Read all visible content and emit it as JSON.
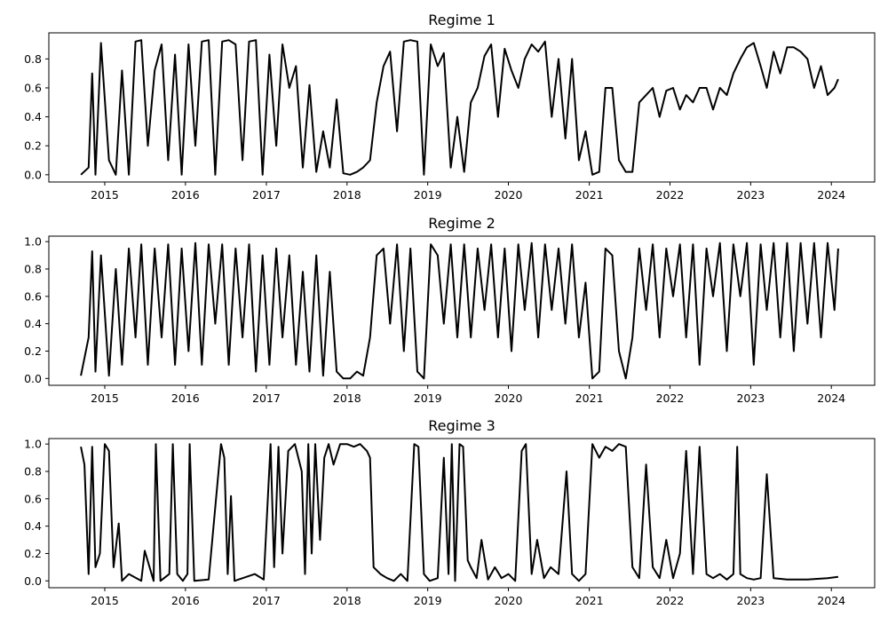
{
  "chart_data": [
    {
      "type": "line",
      "title": "Regime 1",
      "xlabel": "",
      "ylabel": "",
      "xlim": [
        "2014-04-23",
        "2024-07-15"
      ],
      "ylim": [
        -0.05,
        0.98
      ],
      "x_ticks": [
        "2015",
        "2016",
        "2017",
        "2018",
        "2019",
        "2020",
        "2021",
        "2022",
        "2023",
        "2024"
      ],
      "y_ticks": [
        0.0,
        0.2,
        0.4,
        0.6,
        0.8
      ],
      "y_tick_labels": [
        "0.0",
        "0.2",
        "0.4",
        "0.6",
        "0.8"
      ],
      "grid": false,
      "series": [
        {
          "color": "#000000",
          "x": [
            "2014-09-15",
            "2014-10-20",
            "2014-11-05",
            "2014-11-20",
            "2014-12-15",
            "2015-01-20",
            "2015-02-20",
            "2015-03-20",
            "2015-04-20",
            "2015-05-20",
            "2015-06-15",
            "2015-07-15",
            "2015-08-15",
            "2015-09-15",
            "2015-10-15",
            "2015-11-15",
            "2015-12-15",
            "2016-01-15",
            "2016-02-15",
            "2016-03-15",
            "2016-04-15",
            "2016-05-15",
            "2016-06-15",
            "2016-07-15",
            "2016-08-15",
            "2016-09-15",
            "2016-10-15",
            "2016-11-15",
            "2016-12-15",
            "2017-01-15",
            "2017-02-15",
            "2017-03-15",
            "2017-04-15",
            "2017-05-15",
            "2017-06-15",
            "2017-07-15",
            "2017-08-15",
            "2017-09-15",
            "2017-10-15",
            "2017-11-15",
            "2017-12-15",
            "2018-01-15",
            "2018-02-15",
            "2018-03-15",
            "2018-04-15",
            "2018-05-15",
            "2018-06-15",
            "2018-07-15",
            "2018-08-15",
            "2018-09-15",
            "2018-10-15",
            "2018-11-15",
            "2018-12-15",
            "2019-01-15",
            "2019-02-15",
            "2019-03-15",
            "2019-04-15",
            "2019-05-15",
            "2019-06-15",
            "2019-07-15",
            "2019-08-15",
            "2019-09-15",
            "2019-10-15",
            "2019-11-15",
            "2019-12-15",
            "2020-01-15",
            "2020-02-15",
            "2020-03-15",
            "2020-04-15",
            "2020-05-15",
            "2020-06-15",
            "2020-07-15",
            "2020-08-15",
            "2020-09-15",
            "2020-10-15",
            "2020-11-15",
            "2020-12-15",
            "2021-01-15",
            "2021-02-15",
            "2021-03-15",
            "2021-04-15",
            "2021-05-15",
            "2021-06-15",
            "2021-07-15",
            "2021-08-15",
            "2021-09-15",
            "2021-10-15",
            "2021-11-15",
            "2021-12-15",
            "2022-01-15",
            "2022-02-15",
            "2022-03-15",
            "2022-04-15",
            "2022-05-15",
            "2022-06-15",
            "2022-07-15",
            "2022-08-15",
            "2022-09-15",
            "2022-10-15",
            "2022-11-15",
            "2022-12-15",
            "2023-01-15",
            "2023-02-15",
            "2023-03-15",
            "2023-04-15",
            "2023-05-15",
            "2023-06-15",
            "2023-07-15",
            "2023-08-15",
            "2023-09-15",
            "2023-10-15",
            "2023-11-15",
            "2023-12-15",
            "2024-01-15",
            "2024-02-01"
          ],
          "y": [
            0.0,
            0.05,
            0.7,
            0.0,
            0.91,
            0.1,
            0.0,
            0.72,
            0.0,
            0.92,
            0.93,
            0.2,
            0.72,
            0.9,
            0.1,
            0.83,
            0.0,
            0.9,
            0.2,
            0.92,
            0.93,
            0.0,
            0.92,
            0.93,
            0.9,
            0.1,
            0.92,
            0.93,
            0.0,
            0.83,
            0.2,
            0.9,
            0.6,
            0.75,
            0.05,
            0.62,
            0.02,
            0.3,
            0.05,
            0.52,
            0.01,
            0.0,
            0.02,
            0.05,
            0.1,
            0.5,
            0.75,
            0.85,
            0.3,
            0.92,
            0.93,
            0.92,
            0.0,
            0.9,
            0.75,
            0.84,
            0.05,
            0.4,
            0.02,
            0.5,
            0.6,
            0.82,
            0.9,
            0.4,
            0.87,
            0.72,
            0.6,
            0.8,
            0.9,
            0.85,
            0.92,
            0.4,
            0.8,
            0.25,
            0.8,
            0.1,
            0.3,
            0.0,
            0.02,
            0.6,
            0.6,
            0.1,
            0.02,
            0.02,
            0.5,
            0.55,
            0.6,
            0.4,
            0.58,
            0.6,
            0.45,
            0.55,
            0.5,
            0.6,
            0.6,
            0.45,
            0.6,
            0.55,
            0.7,
            0.8,
            0.88,
            0.91,
            0.75,
            0.6,
            0.85,
            0.7,
            0.88,
            0.88,
            0.85,
            0.8,
            0.6,
            0.75,
            0.55,
            0.6,
            0.66
          ]
        }
      ]
    },
    {
      "type": "line",
      "title": "Regime 2",
      "xlabel": "",
      "ylabel": "",
      "xlim": [
        "2014-04-23",
        "2024-07-15"
      ],
      "ylim": [
        -0.05,
        1.04
      ],
      "x_ticks": [
        "2015",
        "2016",
        "2017",
        "2018",
        "2019",
        "2020",
        "2021",
        "2022",
        "2023",
        "2024"
      ],
      "y_ticks": [
        0.0,
        0.2,
        0.4,
        0.6,
        0.8,
        1.0
      ],
      "y_tick_labels": [
        "0.0",
        "0.2",
        "0.4",
        "0.6",
        "0.8",
        "1.0"
      ],
      "grid": false,
      "series": [
        {
          "color": "#000000",
          "x": [
            "2014-09-15",
            "2014-10-20",
            "2014-11-05",
            "2014-11-20",
            "2014-12-15",
            "2015-01-20",
            "2015-02-20",
            "2015-03-20",
            "2015-04-20",
            "2015-05-20",
            "2015-06-15",
            "2015-07-15",
            "2015-08-15",
            "2015-09-15",
            "2015-10-15",
            "2015-11-15",
            "2015-12-15",
            "2016-01-15",
            "2016-02-15",
            "2016-03-15",
            "2016-04-15",
            "2016-05-15",
            "2016-06-15",
            "2016-07-15",
            "2016-08-15",
            "2016-09-15",
            "2016-10-15",
            "2016-11-15",
            "2016-12-15",
            "2017-01-15",
            "2017-02-15",
            "2017-03-15",
            "2017-04-15",
            "2017-05-15",
            "2017-06-15",
            "2017-07-15",
            "2017-08-15",
            "2017-09-15",
            "2017-10-15",
            "2017-11-15",
            "2017-12-15",
            "2018-01-15",
            "2018-02-15",
            "2018-03-15",
            "2018-04-15",
            "2018-05-15",
            "2018-06-15",
            "2018-07-15",
            "2018-08-15",
            "2018-09-15",
            "2018-10-15",
            "2018-11-15",
            "2018-12-15",
            "2019-01-15",
            "2019-02-15",
            "2019-03-15",
            "2019-04-15",
            "2019-05-15",
            "2019-06-15",
            "2019-07-15",
            "2019-08-15",
            "2019-09-15",
            "2019-10-15",
            "2019-11-15",
            "2019-12-15",
            "2020-01-15",
            "2020-02-15",
            "2020-03-15",
            "2020-04-15",
            "2020-05-15",
            "2020-06-15",
            "2020-07-15",
            "2020-08-15",
            "2020-09-15",
            "2020-10-15",
            "2020-11-15",
            "2020-12-15",
            "2021-01-15",
            "2021-02-15",
            "2021-03-15",
            "2021-04-15",
            "2021-05-15",
            "2021-06-15",
            "2021-07-15",
            "2021-08-15",
            "2021-09-15",
            "2021-10-15",
            "2021-11-15",
            "2021-12-15",
            "2022-01-15",
            "2022-02-15",
            "2022-03-15",
            "2022-04-15",
            "2022-05-15",
            "2022-06-15",
            "2022-07-15",
            "2022-08-15",
            "2022-09-15",
            "2022-10-15",
            "2022-11-15",
            "2022-12-15",
            "2023-01-15",
            "2023-02-15",
            "2023-03-15",
            "2023-04-15",
            "2023-05-15",
            "2023-06-15",
            "2023-07-15",
            "2023-08-15",
            "2023-09-15",
            "2023-10-15",
            "2023-11-15",
            "2023-12-15",
            "2024-01-15",
            "2024-02-01"
          ],
          "y": [
            0.02,
            0.3,
            0.93,
            0.05,
            0.9,
            0.02,
            0.8,
            0.1,
            0.95,
            0.3,
            0.98,
            0.1,
            0.95,
            0.3,
            0.98,
            0.1,
            0.95,
            0.2,
            0.99,
            0.1,
            0.98,
            0.4,
            0.98,
            0.1,
            0.95,
            0.3,
            0.98,
            0.05,
            0.9,
            0.1,
            0.95,
            0.3,
            0.9,
            0.1,
            0.78,
            0.05,
            0.9,
            0.02,
            0.78,
            0.05,
            0.0,
            0.0,
            0.05,
            0.02,
            0.3,
            0.9,
            0.95,
            0.4,
            0.98,
            0.2,
            0.95,
            0.05,
            0.0,
            0.98,
            0.9,
            0.4,
            0.98,
            0.3,
            0.98,
            0.3,
            0.95,
            0.5,
            0.98,
            0.3,
            0.95,
            0.2,
            0.98,
            0.5,
            0.99,
            0.3,
            0.98,
            0.5,
            0.95,
            0.4,
            0.98,
            0.3,
            0.7,
            0.0,
            0.05,
            0.95,
            0.9,
            0.2,
            0.0,
            0.3,
            0.95,
            0.5,
            0.98,
            0.3,
            0.95,
            0.6,
            0.98,
            0.3,
            0.98,
            0.1,
            0.95,
            0.6,
            0.99,
            0.2,
            0.98,
            0.6,
            0.99,
            0.1,
            0.98,
            0.5,
            0.99,
            0.3,
            0.99,
            0.2,
            0.99,
            0.4,
            0.99,
            0.3,
            0.99,
            0.5,
            0.95
          ]
        }
      ]
    },
    {
      "type": "line",
      "title": "Regime 3",
      "xlabel": "",
      "ylabel": "",
      "xlim": [
        "2014-04-23",
        "2024-07-15"
      ],
      "ylim": [
        -0.05,
        1.04
      ],
      "x_ticks": [
        "2015",
        "2016",
        "2017",
        "2018",
        "2019",
        "2020",
        "2021",
        "2022",
        "2023",
        "2024"
      ],
      "y_ticks": [
        0.0,
        0.2,
        0.4,
        0.6,
        0.8,
        1.0
      ],
      "y_tick_labels": [
        "0.0",
        "0.2",
        "0.4",
        "0.6",
        "0.8",
        "1.0"
      ],
      "grid": false,
      "series": [
        {
          "color": "#000000",
          "x": [
            "2014-09-15",
            "2014-10-01",
            "2014-10-20",
            "2014-11-05",
            "2014-11-20",
            "2014-12-10",
            "2015-01-01",
            "2015-01-20",
            "2015-02-10",
            "2015-03-05",
            "2015-03-20",
            "2015-04-20",
            "2015-06-15",
            "2015-07-01",
            "2015-08-10",
            "2015-08-20",
            "2015-09-10",
            "2015-10-20",
            "2015-11-05",
            "2015-11-25",
            "2015-12-20",
            "2016-01-10",
            "2016-01-20",
            "2016-02-10",
            "2016-04-15",
            "2016-06-10",
            "2016-06-25",
            "2016-07-10",
            "2016-07-25",
            "2016-08-10",
            "2016-11-10",
            "2016-12-20",
            "2017-01-20",
            "2017-02-05",
            "2017-02-25",
            "2017-03-15",
            "2017-04-10",
            "2017-05-10",
            "2017-06-10",
            "2017-06-25",
            "2017-07-10",
            "2017-07-25",
            "2017-08-10",
            "2017-09-01",
            "2017-09-20",
            "2017-10-10",
            "2017-11-01",
            "2017-12-01",
            "2018-01-01",
            "2018-02-01",
            "2018-03-01",
            "2018-04-01",
            "2018-04-15",
            "2018-05-01",
            "2018-06-01",
            "2018-07-01",
            "2018-08-01",
            "2018-09-01",
            "2018-10-01",
            "2018-11-01",
            "2018-11-20",
            "2018-12-15",
            "2019-01-10",
            "2019-02-15",
            "2019-03-15",
            "2019-04-05",
            "2019-04-20",
            "2019-05-05",
            "2019-05-25",
            "2019-06-10",
            "2019-07-01",
            "2019-07-15",
            "2019-08-10",
            "2019-09-01",
            "2019-10-01",
            "2019-11-01",
            "2019-12-01",
            "2020-01-01",
            "2020-02-01",
            "2020-03-01",
            "2020-03-20",
            "2020-04-15",
            "2020-05-10",
            "2020-06-10",
            "2020-07-10",
            "2020-08-15",
            "2020-09-20",
            "2020-10-15",
            "2020-11-15",
            "2020-12-15",
            "2021-01-15",
            "2021-02-15",
            "2021-03-15",
            "2021-04-15",
            "2021-05-15",
            "2021-06-15",
            "2021-07-15",
            "2021-08-15",
            "2021-09-15",
            "2021-10-15",
            "2021-11-15",
            "2021-12-15",
            "2022-01-15",
            "2022-02-15",
            "2022-03-15",
            "2022-04-15",
            "2022-05-15",
            "2022-06-15",
            "2022-07-15",
            "2022-08-15",
            "2022-09-15",
            "2022-10-15",
            "2022-11-01",
            "2022-11-15",
            "2022-12-15",
            "2023-01-15",
            "2023-02-15",
            "2023-03-15",
            "2023-04-15",
            "2023-06-15",
            "2023-09-15",
            "2023-12-15",
            "2024-02-01"
          ],
          "y": [
            0.98,
            0.85,
            0.05,
            0.98,
            0.1,
            0.2,
            1.0,
            0.95,
            0.1,
            0.42,
            0.0,
            0.05,
            0.0,
            0.22,
            0.0,
            1.0,
            0.0,
            0.05,
            1.0,
            0.05,
            0.0,
            0.05,
            1.0,
            0.0,
            0.01,
            1.0,
            0.9,
            0.05,
            0.62,
            0.0,
            0.05,
            0.01,
            1.0,
            0.1,
            0.98,
            0.2,
            0.95,
            1.0,
            0.8,
            0.05,
            1.0,
            0.2,
            1.0,
            0.3,
            0.9,
            1.0,
            0.85,
            1.0,
            1.0,
            0.98,
            1.0,
            0.95,
            0.9,
            0.1,
            0.05,
            0.02,
            0.0,
            0.05,
            0.0,
            1.0,
            0.98,
            0.05,
            0.0,
            0.02,
            0.9,
            0.05,
            1.0,
            0.0,
            1.0,
            0.98,
            0.15,
            0.1,
            0.02,
            0.3,
            0.01,
            0.1,
            0.02,
            0.05,
            0.0,
            0.95,
            1.0,
            0.05,
            0.3,
            0.02,
            0.1,
            0.05,
            0.8,
            0.05,
            0.0,
            0.05,
            1.0,
            0.9,
            0.98,
            0.95,
            1.0,
            0.98,
            0.1,
            0.02,
            0.85,
            0.1,
            0.02,
            0.3,
            0.02,
            0.2,
            0.95,
            0.05,
            0.98,
            0.05,
            0.02,
            0.05,
            0.01,
            0.05,
            0.98,
            0.05,
            0.02,
            0.01,
            0.02,
            0.78,
            0.02,
            0.01,
            0.01,
            0.02,
            0.03
          ]
        }
      ]
    }
  ]
}
